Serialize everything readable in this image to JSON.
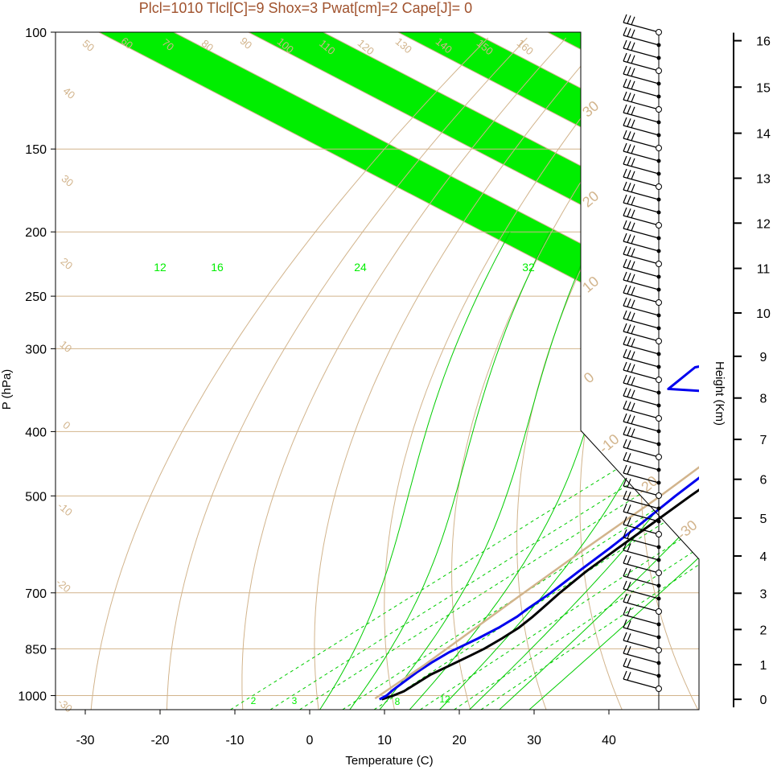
{
  "title": "Plcl=1010 Tlcl[C]=9 Shox=3 Pwat[cm]=2 Cape[J]= 0",
  "colors": {
    "band": "#00ee00",
    "isotherm_grid": "#d2b48c",
    "title": "#a0522d",
    "dewpoint": "#0000ee",
    "temperature": "#000000",
    "parcel": "#d2b48c",
    "mixing_ratio": "#00cc00"
  },
  "chart_data": {
    "type": "line",
    "title": "Plcl=1010 Tlcl[C]=9 Shox=3 Pwat[cm]=2 Cape[J]= 0",
    "xlabel": "Temperature (C)",
    "ylabel": "P (hPa)",
    "y2label": "Height (Km)",
    "x_ticks": [
      "-30",
      "-20",
      "-10",
      "0",
      "10",
      "20",
      "30",
      "40"
    ],
    "x_tick_values": [
      -30,
      -20,
      -10,
      0,
      10,
      20,
      30,
      40
    ],
    "xlim": [
      -34,
      52
    ],
    "y_scale": "log",
    "ylim": [
      1050,
      100
    ],
    "pressure_ticks": [
      "100",
      "150",
      "200",
      "250",
      "300",
      "400",
      "500",
      "700",
      "850",
      "1000"
    ],
    "pressure_tick_values": [
      100,
      150,
      200,
      250,
      300,
      400,
      500,
      700,
      850,
      1000
    ],
    "height_ticks": [
      "0",
      "1",
      "2",
      "3",
      "4",
      "5",
      "6",
      "7",
      "8",
      "9",
      "10",
      "11",
      "12",
      "13",
      "14",
      "15",
      "16"
    ],
    "height_tick_pressures": [
      1013,
      898,
      795,
      701,
      616,
      540,
      472,
      411,
      356,
      308,
      265,
      227,
      194,
      166,
      142,
      121,
      103
    ],
    "series": [
      {
        "name": "Temperature",
        "pressure": [
          1013,
          1000,
          985,
          960,
          930,
          900,
          870,
          850,
          820,
          790,
          760,
          730,
          700,
          650,
          600,
          550,
          500,
          450,
          420,
          400,
          370,
          340,
          300,
          270,
          250,
          235,
          225,
          215,
          205,
          198,
          190,
          180,
          170,
          162,
          150,
          140,
          130,
          118,
          110,
          104
        ],
        "values": [
          9.6,
          10.2,
          10.5,
          10.2,
          9.8,
          10.0,
          10.2,
          10.3,
          10.0,
          9.5,
          8.5,
          7.3,
          6.0,
          4.0,
          2.3,
          0.5,
          -1.5,
          -3.5,
          -4.3,
          -5.0,
          -6.5,
          -7.8,
          -9.3,
          -10.0,
          -10.3,
          -10.0,
          -9.5,
          -9.0,
          -8.0,
          -7.0,
          -5.5,
          -3.0,
          0.8,
          2.5,
          4.5,
          6.0,
          7.5,
          8.7,
          10.2,
          11.5
        ]
      },
      {
        "name": "Dew point",
        "pressure": [
          1013,
          1000,
          980,
          950,
          920,
          890,
          860,
          850,
          820,
          790,
          760,
          740,
          700,
          650,
          600,
          550,
          500,
          450,
          420,
          400,
          370,
          350,
          345,
          320,
          305,
          295,
          280,
          260,
          240,
          220,
          205,
          195,
          185,
          175,
          165,
          150,
          130,
          115,
          105
        ],
        "values": [
          9.3,
          9.3,
          8.7,
          8.0,
          7.3,
          6.8,
          6.5,
          6.6,
          6.8,
          6.8,
          6.4,
          5.8,
          4.8,
          3.0,
          1.2,
          -1.0,
          -3.5,
          -6.0,
          -7.5,
          -9.0,
          -13.5,
          -22.0,
          -32.0,
          -34.0,
          -28.0,
          -27.0,
          -25.0,
          -23.0,
          -22.5,
          -22.5,
          -22.8,
          -23.0,
          -21.8,
          -21.5,
          -21.5,
          -22.5,
          -25.0,
          -28.0,
          -31.0
        ]
      },
      {
        "name": "Parcel",
        "pressure": [
          1010,
          900,
          800,
          700,
          600,
          500,
          400,
          300,
          225,
          200,
          150,
          125,
          105
        ],
        "values": [
          8.5,
          6.5,
          4.0,
          1.2,
          -2.0,
          -5.5,
          -10.5,
          -18.0,
          -27.5,
          -33.0,
          -45.0,
          -54.0,
          -62.0
        ]
      }
    ],
    "isotherm_labels": [
      "-30",
      "-20",
      "-10",
      "0",
      "10",
      "20",
      "30"
    ],
    "dry_adiabat_labels": [
      "-30",
      "-20",
      "-10",
      "0",
      "10",
      "20",
      "30",
      "40",
      "50",
      "60",
      "70",
      "80",
      "90",
      "100",
      "110",
      "120",
      "130",
      "140",
      "150",
      "160"
    ],
    "mixing_ratio_labels": [
      "12",
      "16",
      "24",
      "32",
      "2",
      "3",
      "8",
      "12"
    ],
    "legend": "none",
    "grid": true
  }
}
